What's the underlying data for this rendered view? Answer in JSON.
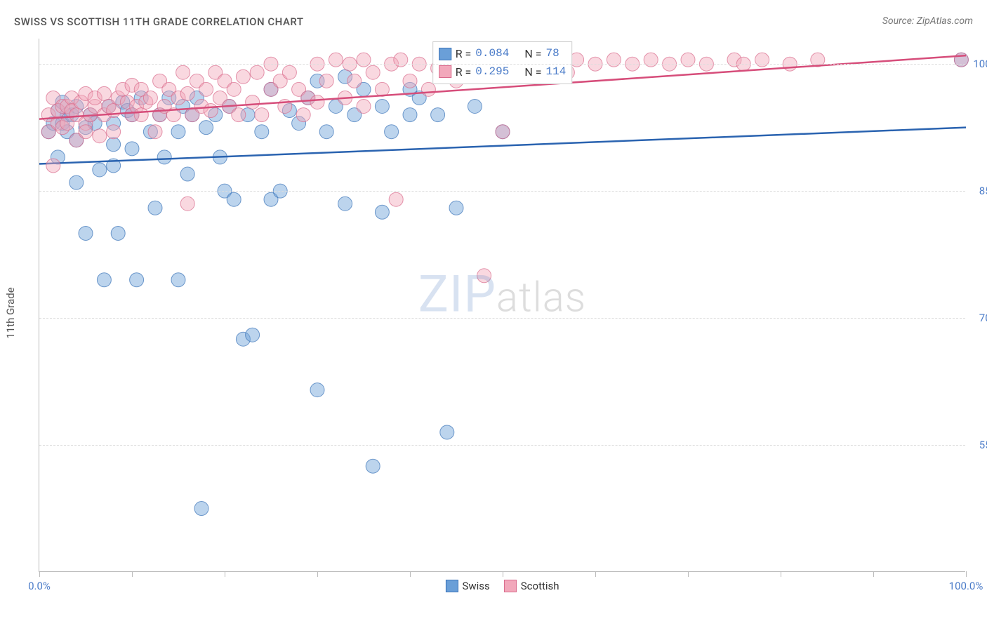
{
  "title": "SWISS VS SCOTTISH 11TH GRADE CORRELATION CHART",
  "source": "Source: ZipAtlas.com",
  "ylabel": "11th Grade",
  "watermark": {
    "part1": "ZIP",
    "part2": "atlas"
  },
  "chart": {
    "type": "scatter",
    "background_color": "#ffffff",
    "grid_color": "#dddddd",
    "axis_color": "#bbbbbb",
    "tick_label_color": "#4a7bc8",
    "title_fontsize": 15,
    "label_fontsize": 15,
    "tick_fontsize": 15,
    "xlim": [
      0,
      100
    ],
    "ylim": [
      40,
      103
    ],
    "xticks": [
      0,
      10,
      20,
      30,
      40,
      50,
      60,
      70,
      80,
      90,
      100
    ],
    "xtick_labels": {
      "0": "0.0%",
      "100": "100.0%"
    },
    "yticks": [
      55,
      70,
      85,
      100
    ],
    "ytick_labels": {
      "55": "55.0%",
      "70": "70.0%",
      "85": "85.0%",
      "100": "100.0%"
    },
    "marker_radius": 10,
    "marker_opacity": 0.45,
    "line_width": 2.5,
    "series": [
      {
        "name": "Swiss",
        "color": "#6a9fd8",
        "stroke": "#3b73b8",
        "line_color": "#2a63b0",
        "R": "0.084",
        "N": "78",
        "trend": {
          "x1": 0,
          "y1": 88.2,
          "x2": 100,
          "y2": 92.5
        },
        "points": [
          [
            1,
            92
          ],
          [
            1.5,
            93
          ],
          [
            2,
            94.5
          ],
          [
            2,
            89
          ],
          [
            2.5,
            95.5
          ],
          [
            2.5,
            93
          ],
          [
            3,
            94
          ],
          [
            3,
            92
          ],
          [
            3.5,
            94
          ],
          [
            4,
            95
          ],
          [
            4,
            91
          ],
          [
            4,
            86
          ],
          [
            5,
            92.5
          ],
          [
            5.5,
            94
          ],
          [
            5,
            80
          ],
          [
            6,
            93
          ],
          [
            6.5,
            87.5
          ],
          [
            7,
            74.5
          ],
          [
            7.5,
            95
          ],
          [
            8,
            93
          ],
          [
            8,
            90.5
          ],
          [
            8,
            88
          ],
          [
            8.5,
            80
          ],
          [
            9,
            95.5
          ],
          [
            9.5,
            94.5
          ],
          [
            10,
            94
          ],
          [
            10,
            90
          ],
          [
            10.5,
            74.5
          ],
          [
            11,
            96
          ],
          [
            12,
            92
          ],
          [
            12.5,
            83
          ],
          [
            13,
            94
          ],
          [
            13.5,
            89
          ],
          [
            14,
            96
          ],
          [
            15,
            92
          ],
          [
            15,
            74.5
          ],
          [
            15.5,
            95
          ],
          [
            16,
            87
          ],
          [
            16.5,
            94
          ],
          [
            17,
            96
          ],
          [
            17.5,
            47.5
          ],
          [
            18,
            92.5
          ],
          [
            19,
            94
          ],
          [
            19.5,
            89
          ],
          [
            20,
            85
          ],
          [
            20.5,
            95
          ],
          [
            21,
            84
          ],
          [
            22,
            67.5
          ],
          [
            22.5,
            94
          ],
          [
            23,
            68
          ],
          [
            24,
            92
          ],
          [
            25,
            84
          ],
          [
            25,
            97
          ],
          [
            26,
            85
          ],
          [
            27,
            94.5
          ],
          [
            28,
            93
          ],
          [
            29,
            96
          ],
          [
            30,
            61.5
          ],
          [
            30,
            98
          ],
          [
            31,
            92
          ],
          [
            32,
            95
          ],
          [
            33,
            98.5
          ],
          [
            33,
            83.5
          ],
          [
            34,
            94
          ],
          [
            35,
            97
          ],
          [
            36,
            52.5
          ],
          [
            37,
            95
          ],
          [
            37,
            82.5
          ],
          [
            38,
            92
          ],
          [
            40,
            97
          ],
          [
            40,
            94
          ],
          [
            41,
            96
          ],
          [
            43,
            94
          ],
          [
            44,
            56.5
          ],
          [
            45,
            83
          ],
          [
            47,
            95
          ],
          [
            50,
            92
          ],
          [
            99.5,
            100.5
          ]
        ]
      },
      {
        "name": "Scottish",
        "color": "#f2a8bb",
        "stroke": "#d96b8c",
        "line_color": "#d64d7a",
        "R": "0.295",
        "N": "114",
        "trend": {
          "x1": 0,
          "y1": 93.5,
          "x2": 100,
          "y2": 101
        },
        "points": [
          [
            1,
            94
          ],
          [
            1,
            92
          ],
          [
            1.5,
            96
          ],
          [
            1.5,
            88
          ],
          [
            2,
            93
          ],
          [
            2,
            94.5
          ],
          [
            2.5,
            95
          ],
          [
            2.5,
            92.5
          ],
          [
            3,
            93
          ],
          [
            3,
            95
          ],
          [
            3.5,
            96
          ],
          [
            3.5,
            94.5
          ],
          [
            4,
            91
          ],
          [
            4,
            94
          ],
          [
            4.5,
            95.5
          ],
          [
            5,
            93
          ],
          [
            5,
            96.5
          ],
          [
            5,
            92
          ],
          [
            5.5,
            94
          ],
          [
            6,
            95
          ],
          [
            6,
            96
          ],
          [
            6.5,
            91.5
          ],
          [
            7,
            94
          ],
          [
            7,
            96.5
          ],
          [
            7.5,
            95
          ],
          [
            8,
            94.5
          ],
          [
            8,
            92
          ],
          [
            8.5,
            96
          ],
          [
            9,
            97
          ],
          [
            9.5,
            95.5
          ],
          [
            10,
            94
          ],
          [
            10,
            97.5
          ],
          [
            10.5,
            95
          ],
          [
            11,
            94
          ],
          [
            11,
            97
          ],
          [
            11.5,
            95.5
          ],
          [
            12,
            96
          ],
          [
            12.5,
            92
          ],
          [
            13,
            94
          ],
          [
            13,
            98
          ],
          [
            13.5,
            95
          ],
          [
            14,
            97
          ],
          [
            14.5,
            94
          ],
          [
            15,
            96
          ],
          [
            15.5,
            99
          ],
          [
            16,
            83.5
          ],
          [
            16,
            96.5
          ],
          [
            16.5,
            94
          ],
          [
            17,
            98
          ],
          [
            17.5,
            95
          ],
          [
            18,
            97
          ],
          [
            18.5,
            94.5
          ],
          [
            19,
            99
          ],
          [
            19.5,
            96
          ],
          [
            20,
            98
          ],
          [
            20.5,
            95
          ],
          [
            21,
            97
          ],
          [
            21.5,
            94
          ],
          [
            22,
            98.5
          ],
          [
            23,
            95.5
          ],
          [
            23.5,
            99
          ],
          [
            24,
            94
          ],
          [
            25,
            100
          ],
          [
            25,
            97
          ],
          [
            26,
            98
          ],
          [
            26.5,
            95
          ],
          [
            27,
            99
          ],
          [
            28,
            97
          ],
          [
            28.5,
            94
          ],
          [
            29,
            96
          ],
          [
            30,
            100
          ],
          [
            30,
            95.5
          ],
          [
            31,
            98
          ],
          [
            32,
            100.5
          ],
          [
            33,
            96
          ],
          [
            33.5,
            100
          ],
          [
            34,
            98
          ],
          [
            35,
            100.5
          ],
          [
            35,
            95
          ],
          [
            36,
            99
          ],
          [
            37,
            97
          ],
          [
            38,
            100
          ],
          [
            38.5,
            84
          ],
          [
            39,
            100.5
          ],
          [
            40,
            98
          ],
          [
            41,
            100
          ],
          [
            42,
            97
          ],
          [
            43,
            99.5
          ],
          [
            44,
            100
          ],
          [
            45,
            98
          ],
          [
            46,
            100.5
          ],
          [
            47,
            99
          ],
          [
            48,
            75
          ],
          [
            49,
            100
          ],
          [
            50,
            92
          ],
          [
            51,
            100.5
          ],
          [
            52,
            99
          ],
          [
            54,
            100
          ],
          [
            55,
            100.5
          ],
          [
            57,
            99
          ],
          [
            58,
            100.5
          ],
          [
            60,
            100
          ],
          [
            62,
            100.5
          ],
          [
            64,
            100
          ],
          [
            66,
            100.5
          ],
          [
            68,
            100
          ],
          [
            70,
            100.5
          ],
          [
            72,
            100
          ],
          [
            75,
            100.5
          ],
          [
            76,
            100
          ],
          [
            78,
            100.5
          ],
          [
            81,
            100
          ],
          [
            84,
            100.5
          ],
          [
            99.5,
            100.5
          ]
        ]
      }
    ]
  },
  "legend": {
    "stats_labels": {
      "R": "R =",
      "N": "N ="
    },
    "bottom_items": [
      "Swiss",
      "Scottish"
    ]
  }
}
